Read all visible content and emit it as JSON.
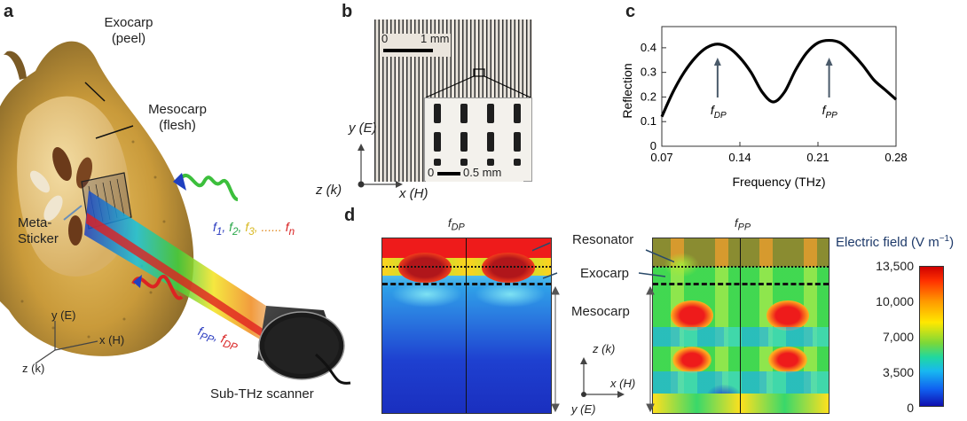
{
  "panel_letters": {
    "a": "a",
    "b": "b",
    "c": "c",
    "d": "d"
  },
  "panel_a": {
    "exocarp_label_1": "Exocarp",
    "exocarp_label_2": "(peel)",
    "mesocarp_label_1": "Mesocarp",
    "mesocarp_label_2": "(flesh)",
    "sticker_label_1": "Meta-",
    "sticker_label_2": "Sticker",
    "freq_f1": "f",
    "freq_f1_sub": "1",
    "freq_f2": "f",
    "freq_f2_sub": "2",
    "freq_f3": "f",
    "freq_f3_sub": "3",
    "freq_dots": "......",
    "freq_fn": "f",
    "freq_fn_sub": "n",
    "fpp": "f",
    "fpp_sub": "PP",
    "fdp": "f",
    "fdp_sub": "DP",
    "comma": ",",
    "axis_y": "y (E)",
    "axis_x": "x (H)",
    "axis_z": "z (k)",
    "scanner_label": "Sub-THz scanner"
  },
  "panel_b": {
    "scale_zero": "0",
    "scale_main": "1 mm",
    "inset_zero": "0",
    "inset_scale": "0.5 mm",
    "axis_y": "y (E)",
    "axis_z": "z (k)",
    "axis_x": "x (H)"
  },
  "chart_data": {
    "type": "line",
    "x": [
      0.07,
      0.08,
      0.09,
      0.1,
      0.11,
      0.12,
      0.13,
      0.14,
      0.15,
      0.16,
      0.17,
      0.18,
      0.19,
      0.2,
      0.21,
      0.22,
      0.23,
      0.24,
      0.25,
      0.26,
      0.27,
      0.28
    ],
    "series": [
      {
        "values": [
          0.12,
          0.22,
          0.3,
          0.36,
          0.4,
          0.415,
          0.4,
          0.36,
          0.3,
          0.22,
          0.18,
          0.22,
          0.31,
          0.38,
          0.42,
          0.43,
          0.42,
          0.38,
          0.33,
          0.27,
          0.23,
          0.19
        ]
      }
    ],
    "title": "",
    "xlabel": "Frequency (THz)",
    "ylabel": "Reflection",
    "xlim": [
      0.07,
      0.28
    ],
    "ylim": [
      0,
      0.45
    ],
    "xticks": [
      "0.07",
      "0.14",
      "0.21",
      "0.28"
    ],
    "yticks": [
      "0",
      "0.1",
      "0.2",
      "0.3",
      "0.4"
    ],
    "annotations": [
      {
        "text": "f",
        "sub": "DP",
        "x": 0.12
      },
      {
        "text": "f",
        "sub": "PP",
        "x": 0.22
      }
    ],
    "grid": false,
    "line_color": "#000000"
  },
  "panel_d": {
    "left_title": "f",
    "left_title_sub": "DP",
    "right_title": "f",
    "right_title_sub": "PP",
    "resonator": "Resonator",
    "exocarp": "Exocarp",
    "mesocarp": "Mesocarp",
    "axis_z": "z (k)",
    "axis_x": "x (H)",
    "axis_y": "y (E)",
    "colorbar_title": "Electric field (V m",
    "colorbar_title_sup": "−1",
    "colorbar_title_end": ")",
    "colorbar_ticks": [
      "13,500",
      "10,000",
      "7,000",
      "3,500",
      "0"
    ]
  }
}
